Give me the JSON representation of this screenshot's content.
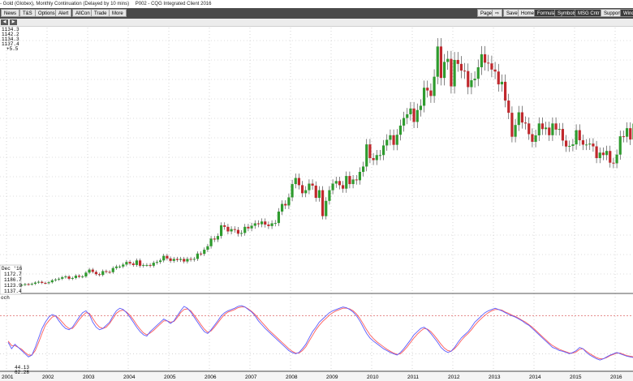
{
  "window": {
    "title_parts": [
      "- Gold (Globex), Monthly Continuation (Delayed by 10 mins)",
      "P002 - CQG Integrated Client 2016"
    ]
  },
  "toolbar": {
    "left_buttons": [
      "News",
      "T&S",
      "Options",
      "Alert",
      "AllCon",
      "Trade",
      "More"
    ],
    "right_buttons": [
      "Page",
      "⇨",
      "Save",
      "Home",
      "Formula",
      "Symbols",
      "MSG Cntr",
      "Support",
      "Windo"
    ]
  },
  "strip": {
    "buttons": [
      "◀",
      "▶"
    ]
  },
  "price_readout": [
    "1134.3",
    "1142.2",
    "1134.3",
    "1137.4",
    "+5.5"
  ],
  "bar_readout": [
    "Dec '16",
    "1172.7",
    "1186.7",
    "1123.9",
    "1137.4"
  ],
  "lower_panel": {
    "label": "och",
    "readout": [
      "44.13",
      "62.28"
    ]
  },
  "colors": {
    "up": "#2e9b2e",
    "down": "#c0282d",
    "wick": "#333333",
    "k_line": "#5b5bff",
    "d_line": "#ff5a5a",
    "ref_line": "#d84a4a"
  },
  "chart_data": {
    "type": "candlestick",
    "series_name": "Gold (Globex), Monthly Continuation",
    "x_labels": [
      "2001",
      "2002",
      "2003",
      "2004",
      "2005",
      "2006",
      "2007",
      "2008",
      "2009",
      "2010",
      "2011",
      "2012",
      "2013",
      "2014",
      "2015",
      "2016"
    ],
    "monthly_close_approx": [
      [
        268,
        270,
        265,
        260,
        265,
        270,
        268,
        272,
        280,
        285,
        278,
        276
      ],
      [
        282,
        295,
        300,
        305,
        315,
        320,
        305,
        310,
        325,
        318,
        320,
        345
      ],
      [
        365,
        350,
        335,
        330,
        355,
        350,
        348,
        375,
        385,
        385,
        398,
        415
      ],
      [
        405,
        395,
        425,
        390,
        395,
        395,
        390,
        410,
        415,
        425,
        455,
        438
      ],
      [
        422,
        435,
        428,
        435,
        418,
        435,
        430,
        435,
        470,
        468,
        495,
        518
      ],
      [
        568,
        562,
        585,
        655,
        645,
        615,
        630,
        625,
        600,
        605,
        645,
        635
      ],
      [
        652,
        668,
        662,
        680,
        660,
        650,
        668,
        670,
        745,
        795,
        785,
        838
      ],
      [
        925,
        965,
        918,
        865,
        885,
        928,
        915,
        835,
        885,
        715,
        815,
        885
      ],
      [
        928,
        945,
        918,
        895,
        978,
        925,
        955,
        950,
        1005,
        1040,
        1185,
        1095
      ],
      [
        1082,
        1115,
        1115,
        1178,
        1215,
        1245,
        1182,
        1248,
        1308,
        1358,
        1382,
        1420
      ],
      [
        1332,
        1410,
        1438,
        1556,
        1538,
        1502,
        1628,
        1826,
        1620,
        1725,
        1745,
        1565
      ],
      [
        1738,
        1712,
        1668,
        1665,
        1560,
        1605,
        1615,
        1690,
        1775,
        1720,
        1715,
        1675
      ],
      [
        1662,
        1578,
        1595,
        1472,
        1392,
        1235,
        1312,
        1395,
        1328,
        1322,
        1252,
        1202
      ],
      [
        1244,
        1322,
        1285,
        1295,
        1245,
        1322,
        1282,
        1286,
        1210,
        1171,
        1175,
        1185
      ],
      [
        1278,
        1212,
        1183,
        1184,
        1190,
        1172,
        1095,
        1131,
        1115,
        1142,
        1065,
        1061
      ],
      [
        1118,
        1238,
        1235,
        1291,
        1217,
        1321,
        1350,
        1309,
        1316,
        1272,
        1174,
        1146
      ]
    ],
    "oscillator": {
      "panel_label": "och",
      "readout_values": [
        44.13,
        62.28
      ],
      "k": [
        38,
        28,
        35,
        30,
        25,
        20,
        15,
        18,
        30,
        45,
        60,
        70,
        78,
        82,
        80,
        72,
        65,
        60,
        58,
        62,
        70,
        78,
        85,
        88,
        82,
        70,
        62,
        58,
        60,
        65,
        70,
        80,
        88,
        92,
        90,
        85,
        78,
        70,
        62,
        55,
        50,
        48,
        55,
        60,
        65,
        70,
        75,
        72,
        68,
        72,
        80,
        88,
        95,
        92,
        86,
        78,
        70,
        62,
        55,
        52,
        58,
        65,
        72,
        80,
        85,
        88,
        90,
        92,
        95,
        96,
        94,
        90,
        86,
        80,
        72,
        66,
        60,
        55,
        50,
        45,
        40,
        35,
        30,
        25,
        22,
        20,
        22,
        28,
        35,
        45,
        55,
        62,
        70,
        75,
        80,
        85,
        88,
        90,
        92,
        94,
        93,
        90,
        86,
        80,
        72,
        62,
        52,
        45,
        40,
        36,
        32,
        28,
        25,
        22,
        20,
        18,
        22,
        28,
        35,
        42,
        50,
        55,
        60,
        62,
        58,
        52,
        45,
        38,
        30,
        25,
        22,
        24,
        30,
        38,
        45,
        50,
        55,
        62,
        70,
        75,
        80,
        85,
        88,
        90,
        92,
        90,
        88,
        85,
        82,
        80,
        78,
        75,
        72,
        68,
        65,
        60,
        55,
        50,
        45,
        40,
        35,
        30,
        28,
        25,
        24,
        22,
        20,
        22,
        25,
        30,
        28,
        22,
        18,
        15,
        12,
        10,
        12,
        15,
        18,
        20,
        22,
        20,
        18,
        16,
        15,
        14,
        13,
        12,
        14,
        16,
        18,
        20,
        22,
        25,
        40,
        60,
        80,
        88,
        85,
        78,
        70,
        62,
        55,
        48,
        44
      ],
      "d": [
        40,
        33,
        33,
        30,
        27,
        22,
        18,
        18,
        25,
        38,
        52,
        65,
        72,
        78,
        80,
        76,
        70,
        64,
        60,
        60,
        66,
        74,
        80,
        85,
        84,
        76,
        68,
        62,
        60,
        62,
        68,
        76,
        84,
        88,
        89,
        86,
        81,
        74,
        66,
        59,
        53,
        50,
        53,
        57,
        62,
        67,
        72,
        72,
        70,
        71,
        77,
        85,
        90,
        91,
        88,
        81,
        74,
        66,
        59,
        54,
        56,
        62,
        69,
        76,
        82,
        86,
        88,
        90,
        93,
        94,
        94,
        91,
        87,
        82,
        76,
        70,
        64,
        58,
        53,
        48,
        43,
        38,
        33,
        28,
        24,
        21,
        21,
        25,
        31,
        40,
        49,
        58,
        65,
        71,
        76,
        81,
        85,
        88,
        90,
        92,
        92,
        91,
        88,
        83,
        76,
        67,
        58,
        50,
        44,
        39,
        35,
        31,
        27,
        24,
        21,
        19,
        20,
        25,
        31,
        38,
        45,
        51,
        56,
        60,
        59,
        55,
        49,
        42,
        35,
        29,
        25,
        24,
        28,
        34,
        41,
        47,
        52,
        58,
        65,
        71,
        76,
        81,
        85,
        88,
        90,
        90,
        89,
        86,
        84,
        81,
        79,
        76,
        73,
        70,
        66,
        62,
        57,
        52,
        47,
        42,
        37,
        33,
        30,
        27,
        25,
        23,
        21,
        21,
        23,
        27,
        28,
        24,
        20,
        17,
        14,
        12,
        12,
        14,
        17,
        19,
        21,
        21,
        19,
        17,
        16,
        15,
        14,
        13,
        13,
        15,
        17,
        19,
        21,
        23,
        32,
        48,
        68,
        82,
        85,
        82,
        75,
        68,
        60,
        53,
        48
      ]
    }
  }
}
